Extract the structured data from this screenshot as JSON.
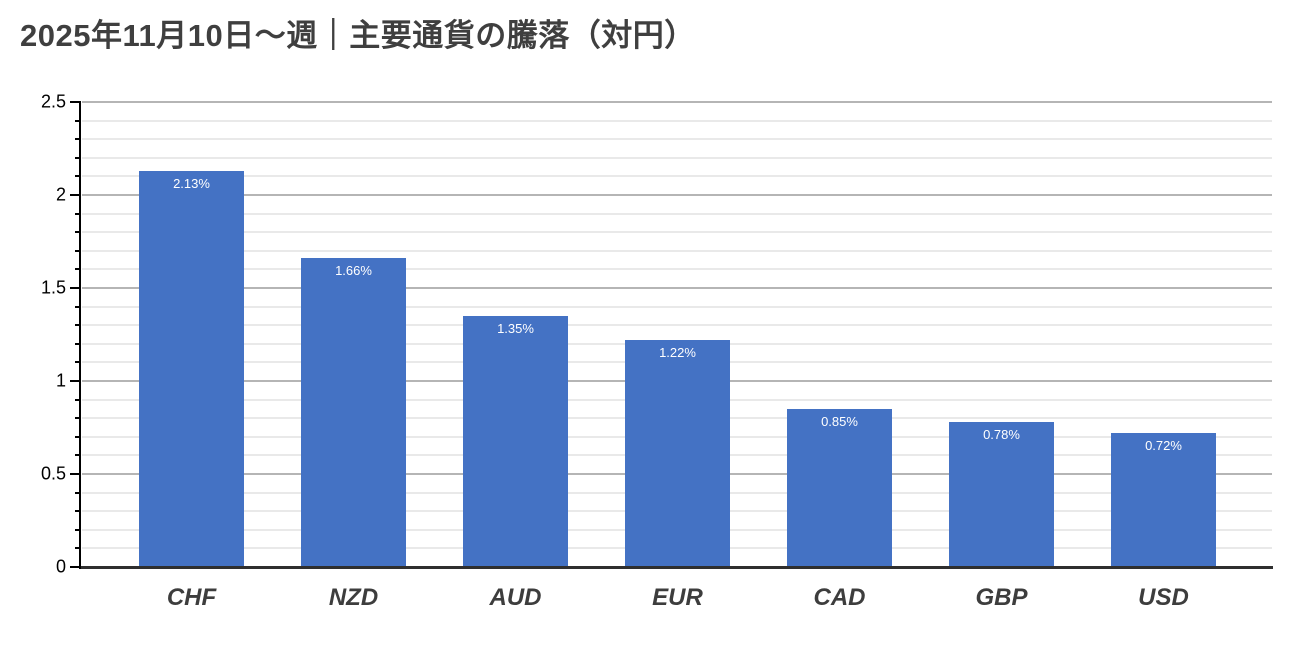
{
  "title": "2025年11月10日〜週｜主要通貨の騰落（対円）",
  "colors": {
    "background": "#ffffff",
    "bar": "#4472c4",
    "bar_label": "#ffffff",
    "title": "#3f3f3f",
    "axis": "#000000",
    "category_label": "#3d3d3d",
    "major_gridline": "#b5b5b5",
    "minor_gridline": "#e9e9e9",
    "baseline": "#2f2f2f"
  },
  "chart_data": {
    "type": "bar",
    "title": "2025年11月10日〜週｜主要通貨の騰落（対円）",
    "categories": [
      "CHF",
      "NZD",
      "AUD",
      "EUR",
      "CAD",
      "GBP",
      "USD"
    ],
    "values": [
      2.13,
      1.66,
      1.35,
      1.22,
      0.85,
      0.78,
      0.72
    ],
    "bar_labels": [
      "2.13%",
      "1.66%",
      "1.35%",
      "1.22%",
      "0.85%",
      "0.78%",
      "0.72%"
    ],
    "xlabel": "",
    "ylabel": "",
    "ylim": [
      0,
      2.5
    ],
    "y_ticks": [
      0,
      0.5,
      1,
      1.5,
      2,
      2.5
    ],
    "y_tick_labels": [
      "0",
      "0.5",
      "1",
      "1.5",
      "2",
      "2.5"
    ],
    "minor_tick_interval": 0.1,
    "grid": true,
    "legend_position": "none"
  }
}
